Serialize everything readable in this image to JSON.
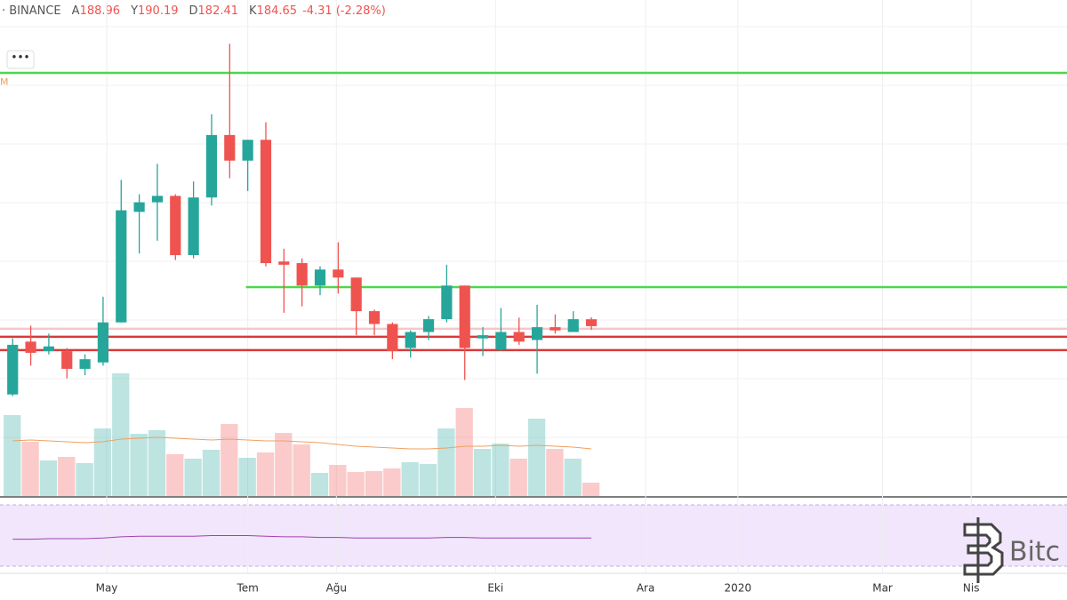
{
  "chart_data": {
    "type": "candlestick",
    "exchange": "· BINANCE",
    "ohlc_labels": [
      "A",
      "Y",
      "D",
      "K"
    ],
    "change": -4.31,
    "change_pct": {
      "value": -2.28,
      "label": "(-2.28%)"
    },
    "indicator_label": "M",
    "watermark": "Bitc",
    "up_color": "#26a69a",
    "down_color": "#ef5350",
    "xlim": [
      -0.7,
      58.3
    ],
    "ylim": [
      78.6,
      388.3
    ],
    "vlim": [
      0,
      140
    ],
    "rsi_lim": [
      0,
      100
    ],
    "open": [
      142,
      175,
      169,
      169,
      158,
      162,
      187,
      256,
      262,
      266,
      229,
      265,
      304,
      288,
      301,
      225,
      224,
      210,
      220,
      215,
      194,
      186,
      171,
      181,
      189,
      210,
      177,
      170,
      181,
      176,
      184,
      181,
      188.96
    ],
    "high": [
      177,
      185,
      180,
      171,
      167,
      203,
      276,
      267,
      286,
      267,
      275,
      317,
      361,
      301,
      312,
      233,
      227,
      222,
      237,
      215,
      195,
      187,
      182,
      191,
      223,
      210,
      184,
      196,
      190,
      198,
      192,
      194,
      190.19
    ],
    "low": [
      141,
      160,
      167,
      152,
      154,
      160,
      187,
      230,
      238,
      226,
      227,
      260,
      277,
      269,
      222,
      193,
      197,
      204,
      205,
      179,
      179,
      164,
      165,
      176,
      187,
      151,
      166,
      169,
      173,
      155,
      180,
      181,
      182.41
    ],
    "close": [
      173,
      168,
      172,
      158,
      164,
      187,
      257,
      262,
      266,
      229,
      265,
      304,
      288,
      301,
      224,
      223,
      210,
      220,
      215,
      194,
      186,
      169,
      181,
      189,
      210,
      171,
      179,
      181,
      175,
      184,
      182,
      189,
      184.65
    ],
    "volume": [
      91,
      61,
      40,
      44,
      37,
      76,
      138,
      70,
      74,
      47,
      42,
      52,
      81,
      43,
      49,
      71,
      58,
      26,
      35,
      27,
      28,
      31,
      38,
      36,
      76,
      99,
      53,
      59,
      42,
      87,
      53,
      42,
      15
    ],
    "volume_ma": [
      62,
      63,
      62,
      61,
      60,
      61,
      64,
      65,
      66,
      65,
      64,
      63,
      64,
      63,
      62,
      62,
      61,
      60,
      58,
      56,
      55,
      54,
      53,
      53,
      54,
      56,
      56,
      57,
      56,
      57,
      56,
      55,
      53
    ],
    "rsi": [
      44,
      44,
      45,
      45,
      45,
      46,
      48,
      49,
      49,
      49,
      49,
      50,
      50,
      50,
      49,
      48,
      48,
      47,
      47,
      46,
      46,
      46,
      46,
      46,
      47,
      47,
      46,
      46,
      46,
      46,
      46,
      46,
      46
    ],
    "levels": [
      {
        "price": 342.8,
        "start": -0.7,
        "color": "#4cd84c"
      },
      {
        "price": 209,
        "start": 12.9,
        "color": "#4cd84c"
      },
      {
        "price": 183,
        "start": -0.7,
        "color": "#f6c6c6"
      },
      {
        "price": 178,
        "start": -0.7,
        "color": "#d83a3a"
      },
      {
        "price": 169.7,
        "start": -0.7,
        "color": "#d83a3a"
      }
    ],
    "time_labels": [
      {
        "label": "May",
        "index": 5.2
      },
      {
        "label": "Tem",
        "index": 13.0
      },
      {
        "label": "Ağu",
        "index": 17.9
      },
      {
        "label": "Eki",
        "index": 26.7
      },
      {
        "label": "Ara",
        "index": 35.0
      },
      {
        "label": "2020",
        "index": 40.1
      },
      {
        "label": "Mar",
        "index": 48.1
      },
      {
        "label": "Nis",
        "index": 53.0
      }
    ]
  }
}
